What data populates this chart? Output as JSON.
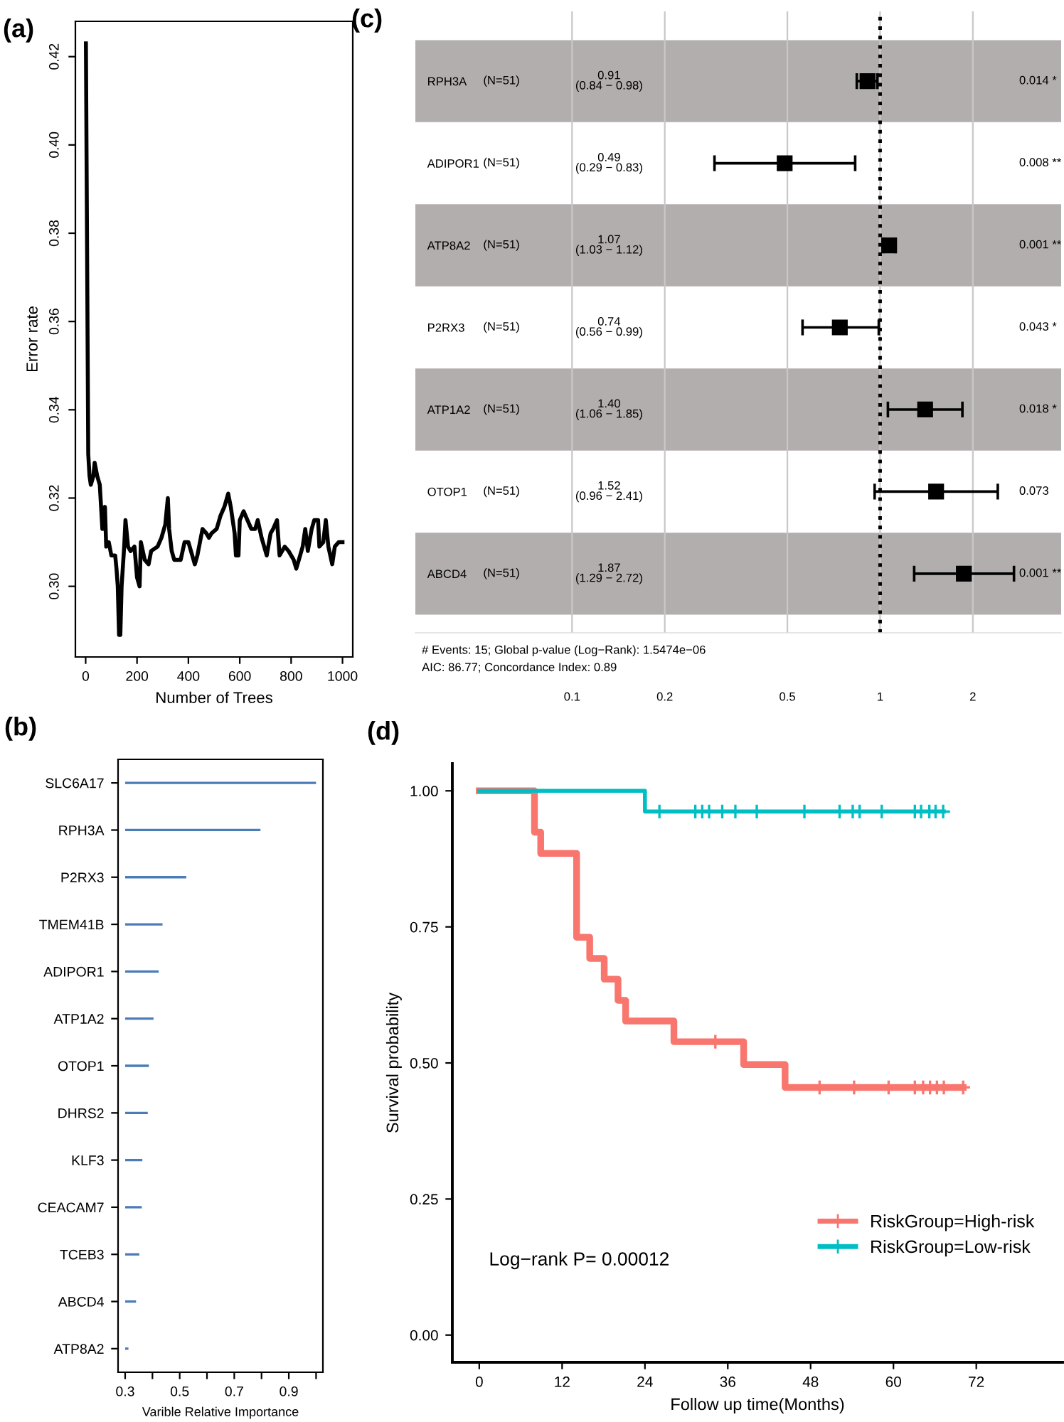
{
  "chart_data": [
    {
      "type": "line",
      "title": "(a)",
      "xlabel": "Number of Trees",
      "ylabel": "Error rate",
      "color": "#000000",
      "x": [
        1,
        10,
        15,
        20,
        30,
        35,
        45,
        55,
        60,
        65,
        75,
        80,
        90,
        100,
        115,
        120,
        125,
        130,
        135,
        140,
        150,
        155,
        165,
        175,
        190,
        200,
        210,
        215,
        230,
        245,
        255,
        280,
        295,
        310,
        320,
        325,
        335,
        345,
        370,
        385,
        400,
        415,
        425,
        435,
        455,
        470,
        480,
        490,
        510,
        525,
        540,
        555,
        565,
        580,
        585,
        595,
        600,
        615,
        630,
        645,
        660,
        670,
        685,
        695,
        705,
        720,
        730,
        745,
        755,
        775,
        790,
        810,
        820,
        830,
        845,
        855,
        865,
        880,
        890,
        905,
        910,
        925,
        935,
        945,
        960,
        970,
        985,
        1000
      ],
      "values": [
        0.423,
        0.33,
        0.325,
        0.323,
        0.325,
        0.328,
        0.325,
        0.323,
        0.318,
        0.313,
        0.318,
        0.309,
        0.31,
        0.307,
        0.307,
        0.304,
        0.3,
        0.289,
        0.289,
        0.3,
        0.309,
        0.315,
        0.309,
        0.308,
        0.309,
        0.302,
        0.3,
        0.31,
        0.306,
        0.305,
        0.308,
        0.309,
        0.311,
        0.314,
        0.32,
        0.313,
        0.308,
        0.306,
        0.306,
        0.31,
        0.31,
        0.307,
        0.305,
        0.307,
        0.313,
        0.312,
        0.311,
        0.312,
        0.313,
        0.316,
        0.318,
        0.321,
        0.318,
        0.312,
        0.307,
        0.307,
        0.315,
        0.317,
        0.315,
        0.313,
        0.313,
        0.315,
        0.311,
        0.309,
        0.307,
        0.312,
        0.313,
        0.315,
        0.307,
        0.309,
        0.308,
        0.306,
        0.304,
        0.306,
        0.309,
        0.313,
        0.308,
        0.313,
        0.315,
        0.315,
        0.309,
        0.31,
        0.315,
        0.309,
        0.305,
        0.309,
        0.31,
        0.31
      ],
      "xlim": [
        -40,
        1040
      ],
      "xticks": [
        0,
        200,
        400,
        600,
        800,
        1000
      ],
      "ylim": [
        0.284,
        0.428
      ],
      "yticks": [
        {
          "value": 0.3,
          "label": "0.30"
        },
        {
          "value": 0.32,
          "label": "0.32"
        },
        {
          "value": 0.34,
          "label": "0.34"
        },
        {
          "value": 0.36,
          "label": "0.36"
        },
        {
          "value": 0.38,
          "label": "0.38"
        },
        {
          "value": 0.4,
          "label": "0.40"
        },
        {
          "value": 0.42,
          "label": "0.42"
        }
      ]
    },
    {
      "type": "bar",
      "orientation": "horizontal",
      "title": "(b)",
      "xlabel": "Varible Relative Importance",
      "color": "#4a7db8",
      "categories": [
        "SLC6A17",
        "RPH3A",
        "P2RX3",
        "TMEM41B",
        "ADIPOR1",
        "ATP1A2",
        "OTOP1",
        "DHRS2",
        "KLF3",
        "CEACAM7",
        "TCEB3",
        "ABCD4",
        "ATP8A2"
      ],
      "base": [
        0.3,
        0.3,
        0.3,
        0.3,
        0.3,
        0.3,
        0.3,
        0.3,
        0.3,
        0.3,
        0.3,
        0.3,
        0.3
      ],
      "values": [
        0.7,
        0.496,
        0.224,
        0.137,
        0.123,
        0.104,
        0.087,
        0.083,
        0.063,
        0.061,
        0.052,
        0.04,
        0.012
      ],
      "xlim": [
        0.274,
        1.025
      ],
      "xticks": [
        0.3,
        {
          "value": 0.4,
          "label": null
        },
        0.5,
        {
          "value": 0.6,
          "label": null
        },
        0.7,
        {
          "value": 0.8,
          "label": null
        },
        0.9,
        {
          "value": 1.0,
          "label": null
        }
      ]
    },
    {
      "type": "scatter",
      "orientation": "horizontal",
      "title": "(c)",
      "color": "#000000",
      "marker": "square",
      "log": "x",
      "grid": "x",
      "categories": [
        "RPH3A",
        "ADIPOR1",
        "ATP8A2",
        "P2RX3",
        "ATP1A2",
        "OTOP1",
        "ABCD4"
      ],
      "values": [
        0.91,
        0.49,
        1.07,
        0.74,
        1.4,
        1.52,
        1.87
      ],
      "errors": [
        [
          0.84,
          0.98
        ],
        [
          0.29,
          0.83
        ],
        [
          1.03,
          1.12
        ],
        [
          0.56,
          0.99
        ],
        [
          1.06,
          1.85
        ],
        [
          0.96,
          2.41
        ],
        [
          1.29,
          2.72
        ]
      ],
      "xlim": [
        0.031,
        3.87
      ],
      "xticks": [
        0.1,
        0.2,
        0.5,
        1,
        2
      ],
      "ref_lines": [
        {
          "axis": "x",
          "value": 1,
          "line_style": "dotted",
          "color": "#000000"
        }
      ],
      "bands": [
        {
          "axis": "y",
          "from": "RPH3A",
          "to": "RPH3A",
          "color": "#b3aeae"
        },
        {
          "axis": "y",
          "from": "ATP8A2",
          "to": "ATP8A2",
          "color": "#b3aeae"
        },
        {
          "axis": "y",
          "from": "ATP1A2",
          "to": "ATP1A2",
          "color": "#b3aeae"
        },
        {
          "axis": "y",
          "from": "ABCD4",
          "to": "ABCD4",
          "color": "#b3aeae"
        }
      ],
      "annotations": [
        "(N=51)",
        "0.91\n(0.84 − 0.98)",
        "0.014 *",
        "(N=51)",
        "0.49\n(0.29 − 0.83)",
        "0.008 **",
        "(N=51)",
        "1.07\n(1.03 − 1.12)",
        "0.001 **",
        "(N=51)",
        "0.74\n(0.56 − 0.99)",
        "0.043 *",
        "(N=51)",
        "1.40\n(1.06 − 1.85)",
        "0.018 *",
        "(N=51)",
        "1.52\n(0.96 − 2.41)",
        "0.073",
        "(N=51)",
        "1.87\n(1.29 − 2.72)",
        "0.001 **",
        "# Events: 15; Global p-value (Log−Rank): 1.5474e−06",
        "AIC: 86.77; Concordance Index: 0.89"
      ]
    },
    {
      "type": "step",
      "title": "(d)",
      "xlabel": "Follow up time(Months)",
      "ylabel": "Survival probability",
      "legend": "bottom right",
      "series": [
        {
          "name": "RiskGroup=High-risk",
          "color": "#f8766d",
          "x": [
            0,
            8,
            8.9,
            14.1,
            16,
            18.1,
            20.1,
            21.2,
            28.2,
            38.3,
            44.3,
            70.1
          ],
          "values": [
            1,
            0.924,
            0.885,
            0.731,
            0.692,
            0.654,
            0.615,
            0.577,
            0.539,
            0.497,
            0.455,
            0.455
          ]
        },
        {
          "name": "RiskGroup=Low-risk",
          "color": "#00bfc4",
          "x": [
            0,
            24,
            67.3
          ],
          "values": [
            1,
            0.962,
            0.962
          ]
        },
        {
          "type": "scatter",
          "marker": "cross",
          "color": "#f8766d",
          "x": [
            34.2,
            49.3,
            54.3,
            59.3,
            63.1,
            64.3,
            65.3,
            66.3,
            67.3,
            70.1
          ],
          "values": [
            0.539,
            0.455,
            0.455,
            0.455,
            0.455,
            0.455,
            0.455,
            0.455,
            0.455,
            0.455
          ]
        },
        {
          "type": "scatter",
          "marker": "cross",
          "color": "#00bfc4",
          "x": [
            26.1,
            31.3,
            32.3,
            33.3,
            35.2,
            37.1,
            40.2,
            47.1,
            52.2,
            54.1,
            55.1,
            58.3,
            63.1,
            64.0,
            65.2,
            66.1,
            67.2
          ],
          "values": [
            0.962,
            0.962,
            0.962,
            0.962,
            0.962,
            0.962,
            0.962,
            0.962,
            0.962,
            0.962,
            0.962,
            0.962,
            0.962,
            0.962,
            0.962,
            0.962,
            0.962
          ]
        }
      ],
      "xlim": [
        -3.9,
        84.5
      ],
      "xticks": [
        0,
        12,
        24,
        36,
        48,
        60,
        72
      ],
      "ylim": [
        -0.05,
        1.05
      ],
      "yticks": [
        {
          "value": 0,
          "label": "0.00"
        },
        {
          "value": 0.25,
          "label": "0.25"
        },
        {
          "value": 0.5,
          "label": "0.50"
        },
        {
          "value": 0.75,
          "label": "0.75"
        },
        {
          "value": 1,
          "label": "1.00"
        }
      ],
      "annotations": [
        "Log−rank P= 0.00012"
      ]
    }
  ]
}
